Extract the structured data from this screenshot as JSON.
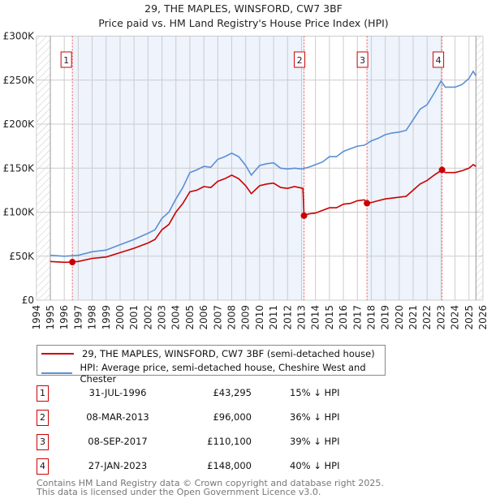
{
  "chart_data": {
    "type": "line",
    "title": "29, THE MAPLES, WINSFORD, CW7 3BF",
    "subtitle": "Price paid vs. HM Land Registry's House Price Index (HPI)",
    "xlim": [
      1994,
      2026
    ],
    "ylim": [
      0,
      300000
    ],
    "yticks": [
      {
        "v": 0,
        "label": "£0"
      },
      {
        "v": 50000,
        "label": "£50K"
      },
      {
        "v": 100000,
        "label": "£100K"
      },
      {
        "v": 150000,
        "label": "£150K"
      },
      {
        "v": 200000,
        "label": "£200K"
      },
      {
        "v": 250000,
        "label": "£250K"
      },
      {
        "v": 300000,
        "label": "£300K"
      }
    ],
    "xticks": [
      1994,
      1995,
      1996,
      1997,
      1998,
      1999,
      2000,
      2001,
      2002,
      2003,
      2004,
      2005,
      2006,
      2007,
      2008,
      2009,
      2010,
      2011,
      2012,
      2013,
      2014,
      2015,
      2016,
      2017,
      2018,
      2019,
      2020,
      2021,
      2022,
      2023,
      2024,
      2025,
      2026
    ],
    "grid": true,
    "data_range": [
      1995,
      2025.5
    ],
    "colors": {
      "price": "#cc0000",
      "hpi": "#5b8fd4",
      "shade": "#eef3fc"
    },
    "series": [
      {
        "name": "29, THE MAPLES, WINSFORD, CW7 3BF (semi-detached house)",
        "key": "price",
        "points": [
          [
            1995,
            44000
          ],
          [
            1996,
            43000
          ],
          [
            1996.58,
            43295
          ],
          [
            1997,
            44000
          ],
          [
            1998,
            47500
          ],
          [
            1999,
            49000
          ],
          [
            2000,
            54000
          ],
          [
            2001,
            59000
          ],
          [
            2002,
            65000
          ],
          [
            2002.5,
            69000
          ],
          [
            2003,
            80000
          ],
          [
            2003.5,
            86000
          ],
          [
            2004,
            100000
          ],
          [
            2004.5,
            110000
          ],
          [
            2005,
            123000
          ],
          [
            2005.5,
            125000
          ],
          [
            2006,
            129000
          ],
          [
            2006.5,
            128000
          ],
          [
            2007,
            135000
          ],
          [
            2007.5,
            138000
          ],
          [
            2008,
            142000
          ],
          [
            2008.5,
            138000
          ],
          [
            2009,
            130000
          ],
          [
            2009.4,
            121000
          ],
          [
            2010,
            130000
          ],
          [
            2010.5,
            132000
          ],
          [
            2011,
            133000
          ],
          [
            2011.5,
            128000
          ],
          [
            2012,
            127000
          ],
          [
            2012.5,
            129000
          ],
          [
            2013.1,
            127000
          ],
          [
            2013.18,
            96000
          ],
          [
            2013.5,
            98000
          ],
          [
            2014,
            99000
          ],
          [
            2015,
            105000
          ],
          [
            2015.5,
            105000
          ],
          [
            2016,
            109000
          ],
          [
            2016.5,
            110000
          ],
          [
            2017,
            113000
          ],
          [
            2017.5,
            114000
          ],
          [
            2017.69,
            110100
          ],
          [
            2018,
            111000
          ],
          [
            2018.5,
            113000
          ],
          [
            2019,
            115000
          ],
          [
            2020,
            117000
          ],
          [
            2020.5,
            118000
          ],
          [
            2021,
            125000
          ],
          [
            2021.5,
            132000
          ],
          [
            2022,
            136000
          ],
          [
            2022.5,
            142000
          ],
          [
            2023.07,
            148000
          ],
          [
            2023.3,
            145000
          ],
          [
            2024,
            145000
          ],
          [
            2024.5,
            147000
          ],
          [
            2025,
            150000
          ],
          [
            2025.3,
            154000
          ],
          [
            2025.5,
            152000
          ]
        ]
      },
      {
        "name": "HPI: Average price, semi-detached house, Cheshire West and Chester",
        "key": "hpi",
        "points": [
          [
            1995,
            51000
          ],
          [
            1996,
            50000
          ],
          [
            1996.58,
            50500
          ],
          [
            1997,
            51000
          ],
          [
            1998,
            55000
          ],
          [
            1999,
            57000
          ],
          [
            2000,
            63000
          ],
          [
            2001,
            69000
          ],
          [
            2002,
            76000
          ],
          [
            2002.5,
            80000
          ],
          [
            2003,
            93000
          ],
          [
            2003.5,
            100000
          ],
          [
            2004,
            115000
          ],
          [
            2004.5,
            128000
          ],
          [
            2005,
            145000
          ],
          [
            2005.5,
            148000
          ],
          [
            2006,
            152000
          ],
          [
            2006.5,
            151000
          ],
          [
            2007,
            160000
          ],
          [
            2007.5,
            163000
          ],
          [
            2008,
            167000
          ],
          [
            2008.5,
            163000
          ],
          [
            2009,
            153000
          ],
          [
            2009.4,
            142000
          ],
          [
            2010,
            153000
          ],
          [
            2010.5,
            155000
          ],
          [
            2011,
            156000
          ],
          [
            2011.5,
            150000
          ],
          [
            2012,
            149000
          ],
          [
            2012.5,
            150000
          ],
          [
            2013,
            149000
          ],
          [
            2013.5,
            151000
          ],
          [
            2014,
            154000
          ],
          [
            2014.5,
            157000
          ],
          [
            2015,
            163000
          ],
          [
            2015.5,
            163000
          ],
          [
            2016,
            169000
          ],
          [
            2016.5,
            172000
          ],
          [
            2017,
            175000
          ],
          [
            2017.5,
            176000
          ],
          [
            2018,
            181000
          ],
          [
            2018.5,
            184000
          ],
          [
            2019,
            188000
          ],
          [
            2019.5,
            190000
          ],
          [
            2020,
            191000
          ],
          [
            2020.5,
            193000
          ],
          [
            2021,
            205000
          ],
          [
            2021.5,
            217000
          ],
          [
            2022,
            222000
          ],
          [
            2022.5,
            235000
          ],
          [
            2023,
            249000
          ],
          [
            2023.3,
            242000
          ],
          [
            2024,
            242000
          ],
          [
            2024.5,
            245000
          ],
          [
            2025,
            252000
          ],
          [
            2025.3,
            260000
          ],
          [
            2025.5,
            255000
          ]
        ]
      }
    ],
    "sales": [
      {
        "label": "1",
        "x": 1996.58,
        "price": 43295,
        "date": "31-JUL-1996",
        "price_text": "£43,295",
        "hpi_text": "15% ↓ HPI"
      },
      {
        "label": "2",
        "x": 2013.18,
        "price": 96000,
        "date": "08-MAR-2013",
        "price_text": "£96,000",
        "hpi_text": "36% ↓ HPI"
      },
      {
        "label": "3",
        "x": 2017.69,
        "price": 110100,
        "date": "08-SEP-2017",
        "price_text": "£110,100",
        "hpi_text": "39% ↓ HPI"
      },
      {
        "label": "4",
        "x": 2023.07,
        "price": 148000,
        "date": "27-JAN-2023",
        "price_text": "£148,000",
        "hpi_text": "40% ↓ HPI"
      }
    ]
  },
  "legend": {
    "price": "29, THE MAPLES, WINSFORD, CW7 3BF (semi-detached house)",
    "hpi": "HPI: Average price, semi-detached house, Cheshire West and Chester"
  },
  "footer": {
    "line1": "Contains HM Land Registry data © Crown copyright and database right 2025.",
    "line2": "This data is licensed under the Open Government Licence v3.0."
  }
}
